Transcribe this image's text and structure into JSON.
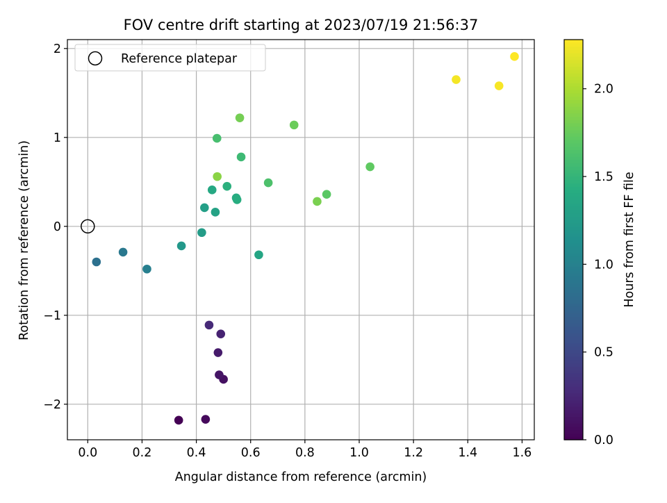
{
  "chart_data": {
    "type": "scatter",
    "title": "FOV centre drift starting at 2023/07/19 21:56:37",
    "xlabel": "Angular distance from reference (arcmin)",
    "ylabel": "Rotation from reference (arcmin)",
    "xlim": [
      -0.075,
      1.645
    ],
    "ylim": [
      -2.4,
      2.1
    ],
    "xticks": [
      0.0,
      0.2,
      0.4,
      0.6,
      0.8,
      1.0,
      1.2,
      1.4,
      1.6
    ],
    "xtick_labels": [
      "0.0",
      "0.2",
      "0.4",
      "0.6",
      "0.8",
      "1.0",
      "1.2",
      "1.4",
      "1.6"
    ],
    "yticks": [
      -2,
      -1,
      0,
      1,
      2
    ],
    "ytick_labels": [
      "−2",
      "−1",
      "0",
      "1",
      "2"
    ],
    "grid": true,
    "legend": {
      "position": "top-left",
      "entries": [
        {
          "label": "Reference platepar",
          "marker": "hollow-circle"
        }
      ]
    },
    "reference_point": {
      "x": 0.0,
      "y": 0.0
    },
    "colorbar": {
      "label": "Hours from first FF file",
      "colormap": "viridis",
      "range": [
        0.0,
        2.28
      ],
      "ticks": [
        0.0,
        0.5,
        1.0,
        1.5,
        2.0
      ],
      "tick_labels": [
        "0.0",
        "0.5",
        "1.0",
        "1.5",
        "2.0"
      ]
    },
    "points": [
      {
        "x": 0.335,
        "y": -2.18,
        "c": 0.0
      },
      {
        "x": 0.434,
        "y": -2.17,
        "c": 0.05
      },
      {
        "x": 0.5,
        "y": -1.72,
        "c": 0.1
      },
      {
        "x": 0.484,
        "y": -1.67,
        "c": 0.13
      },
      {
        "x": 0.48,
        "y": -1.42,
        "c": 0.17
      },
      {
        "x": 0.49,
        "y": -1.21,
        "c": 0.22
      },
      {
        "x": 0.447,
        "y": -1.11,
        "c": 0.27
      },
      {
        "x": 0.032,
        "y": -0.4,
        "c": 0.85
      },
      {
        "x": 0.13,
        "y": -0.29,
        "c": 0.92
      },
      {
        "x": 0.218,
        "y": -0.48,
        "c": 0.98
      },
      {
        "x": 0.345,
        "y": -0.22,
        "c": 1.22
      },
      {
        "x": 0.42,
        "y": -0.07,
        "c": 1.26
      },
      {
        "x": 0.43,
        "y": 0.21,
        "c": 1.29
      },
      {
        "x": 0.47,
        "y": 0.16,
        "c": 1.32
      },
      {
        "x": 0.63,
        "y": -0.32,
        "c": 1.35
      },
      {
        "x": 0.458,
        "y": 0.41,
        "c": 1.38
      },
      {
        "x": 0.547,
        "y": 0.32,
        "c": 1.41
      },
      {
        "x": 0.55,
        "y": 0.3,
        "c": 1.43
      },
      {
        "x": 0.513,
        "y": 0.45,
        "c": 1.45
      },
      {
        "x": 0.565,
        "y": 0.78,
        "c": 1.55
      },
      {
        "x": 0.476,
        "y": 0.99,
        "c": 1.6
      },
      {
        "x": 0.665,
        "y": 0.49,
        "c": 1.63
      },
      {
        "x": 0.88,
        "y": 0.36,
        "c": 1.7
      },
      {
        "x": 1.04,
        "y": 0.67,
        "c": 1.72
      },
      {
        "x": 0.76,
        "y": 1.14,
        "c": 1.76
      },
      {
        "x": 0.56,
        "y": 1.22,
        "c": 1.8
      },
      {
        "x": 0.845,
        "y": 0.28,
        "c": 1.82
      },
      {
        "x": 0.477,
        "y": 0.56,
        "c": 1.88
      },
      {
        "x": 1.357,
        "y": 1.65,
        "c": 2.25
      },
      {
        "x": 1.515,
        "y": 1.58,
        "c": 2.26
      },
      {
        "x": 1.572,
        "y": 1.91,
        "c": 2.28
      }
    ]
  }
}
